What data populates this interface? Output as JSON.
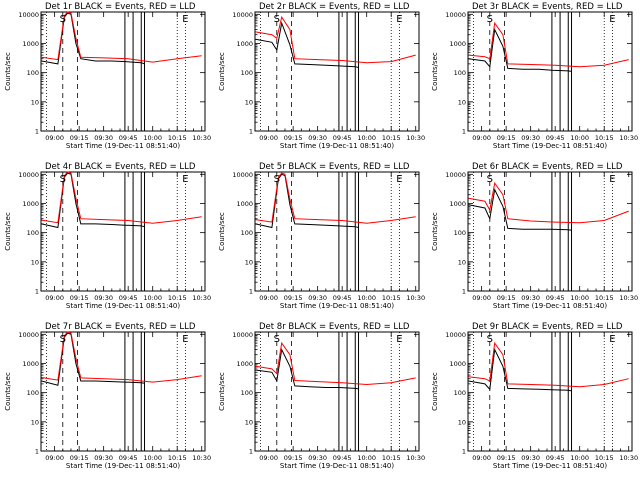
{
  "colors": {
    "events": "#000000",
    "lld": "#ff0000",
    "axes": "#000000",
    "background": "#ffffff"
  },
  "common": {
    "xlabel": "Start Time (19-Dec-11 08:51:40)",
    "ylabel": "Counts/sec",
    "x_tick_labels": [
      "09:00",
      "09:15",
      "09:30",
      "09:45",
      "10:00",
      "10:15",
      "10:30"
    ],
    "y_tick_labels": [
      "1",
      "10",
      "100",
      "1000",
      "10000"
    ]
  },
  "chart_data": [
    {
      "title": "Det 1r BLACK = Events, RED = LLD",
      "type": "line",
      "xlim": [
        "08:51:40",
        "10:32:00"
      ],
      "ylim": [
        1,
        12000
      ],
      "yscale": "log",
      "x_ticks": [
        "09:00",
        "09:15",
        "09:30",
        "09:45",
        "10:00",
        "10:15",
        "10:30"
      ],
      "dashed_lines": [
        "09:05",
        "09:14"
      ],
      "dotted_lines": [
        "08:55",
        "10:15",
        "10:20"
      ],
      "gap_lines": [
        "09:43",
        "09:48",
        "09:53",
        "09:55"
      ],
      "markers": [
        {
          "text": "S",
          "x": "09:05"
        },
        {
          "text": "E",
          "x": "10:20"
        }
      ],
      "series": [
        {
          "role": "events",
          "color": "#000000",
          "x": [
            "08:52",
            "09:02",
            "09:06",
            "09:08",
            "09:10",
            "09:13",
            "09:16",
            "09:25",
            "09:35",
            "09:43",
            "09:53",
            "09:55"
          ],
          "y": [
            250,
            200,
            8000,
            11000,
            10000,
            1000,
            300,
            250,
            250,
            240,
            220,
            200
          ]
        },
        {
          "role": "lld",
          "color": "#ff0000",
          "x": [
            "08:52",
            "09:02",
            "09:06",
            "09:08",
            "09:10",
            "09:13",
            "09:16",
            "09:30",
            "09:45",
            "10:00",
            "10:15",
            "10:30"
          ],
          "y": [
            340,
            280,
            9000,
            12000,
            11000,
            1500,
            340,
            320,
            300,
            230,
            300,
            380
          ]
        }
      ]
    },
    {
      "title": "Det 2r BLACK = Events, RED = LLD",
      "type": "line",
      "xlim": [
        "08:51:40",
        "10:32:00"
      ],
      "ylim": [
        1,
        12000
      ],
      "yscale": "log",
      "x_ticks": [
        "09:00",
        "09:15",
        "09:30",
        "09:45",
        "10:00",
        "10:15",
        "10:30"
      ],
      "dashed_lines": [
        "09:05",
        "09:14"
      ],
      "dotted_lines": [
        "08:55",
        "10:15",
        "10:20"
      ],
      "gap_lines": [
        "09:43",
        "09:48",
        "09:53",
        "09:55"
      ],
      "markers": [
        {
          "text": "S",
          "x": "09:05"
        },
        {
          "text": "E",
          "x": "10:20"
        }
      ],
      "series": [
        {
          "role": "events",
          "color": "#000000",
          "x": [
            "08:52",
            "09:02",
            "09:05",
            "09:08",
            "09:13",
            "09:16",
            "09:25",
            "09:35",
            "09:43",
            "09:53",
            "09:55"
          ],
          "y": [
            1400,
            1100,
            600,
            5000,
            900,
            200,
            190,
            180,
            170,
            160,
            150
          ]
        },
        {
          "role": "lld",
          "color": "#ff0000",
          "x": [
            "08:52",
            "09:02",
            "09:05",
            "09:08",
            "09:13",
            "09:16",
            "09:30",
            "09:45",
            "10:00",
            "10:15",
            "10:30"
          ],
          "y": [
            2500,
            2000,
            1500,
            8000,
            3000,
            300,
            280,
            260,
            220,
            240,
            400
          ]
        }
      ]
    },
    {
      "title": "Det 3r BLACK = Events, RED = LLD",
      "type": "line",
      "xlim": [
        "08:51:40",
        "10:32:00"
      ],
      "ylim": [
        1,
        12000
      ],
      "yscale": "log",
      "x_ticks": [
        "09:00",
        "09:15",
        "09:30",
        "09:45",
        "10:00",
        "10:15",
        "10:30"
      ],
      "dashed_lines": [
        "09:05",
        "09:14"
      ],
      "dotted_lines": [
        "08:55",
        "10:15",
        "10:20"
      ],
      "gap_lines": [
        "09:43",
        "09:48",
        "09:53",
        "09:55"
      ],
      "markers": [
        {
          "text": "S",
          "x": "09:05"
        },
        {
          "text": "E",
          "x": "10:20"
        }
      ],
      "series": [
        {
          "role": "events",
          "color": "#000000",
          "x": [
            "08:52",
            "09:02",
            "09:05",
            "09:08",
            "09:13",
            "09:16",
            "09:25",
            "09:35",
            "09:43",
            "09:53",
            "09:55"
          ],
          "y": [
            300,
            250,
            160,
            3000,
            800,
            140,
            130,
            130,
            120,
            115,
            110
          ]
        },
        {
          "role": "lld",
          "color": "#ff0000",
          "x": [
            "08:52",
            "09:02",
            "09:05",
            "09:08",
            "09:13",
            "09:16",
            "09:30",
            "09:45",
            "10:00",
            "10:15",
            "10:30"
          ],
          "y": [
            400,
            350,
            300,
            5000,
            2000,
            200,
            190,
            180,
            160,
            180,
            280
          ]
        }
      ]
    },
    {
      "title": "Det 4r BLACK = Events, RED = LLD",
      "type": "line",
      "xlim": [
        "08:51:40",
        "10:32:00"
      ],
      "ylim": [
        1,
        12000
      ],
      "yscale": "log",
      "x_ticks": [
        "09:00",
        "09:15",
        "09:30",
        "09:45",
        "10:00",
        "10:15",
        "10:30"
      ],
      "dashed_lines": [
        "09:05",
        "09:14"
      ],
      "dotted_lines": [
        "08:55",
        "10:15",
        "10:20"
      ],
      "gap_lines": [
        "09:43",
        "09:48",
        "09:53",
        "09:55"
      ],
      "markers": [
        {
          "text": "S",
          "x": "09:05"
        },
        {
          "text": "E",
          "x": "10:20"
        }
      ],
      "series": [
        {
          "role": "events",
          "color": "#000000",
          "x": [
            "08:52",
            "09:02",
            "09:06",
            "09:08",
            "09:10",
            "09:13",
            "09:16",
            "09:25",
            "09:35",
            "09:43",
            "09:53",
            "09:55"
          ],
          "y": [
            200,
            150,
            8000,
            11000,
            10000,
            1000,
            200,
            200,
            190,
            180,
            170,
            160
          ]
        },
        {
          "role": "lld",
          "color": "#ff0000",
          "x": [
            "08:52",
            "09:02",
            "09:06",
            "09:08",
            "09:10",
            "09:13",
            "09:16",
            "09:30",
            "09:45",
            "10:00",
            "10:15",
            "10:30"
          ],
          "y": [
            270,
            220,
            9000,
            12000,
            11000,
            1500,
            300,
            280,
            260,
            210,
            260,
            350
          ]
        }
      ]
    },
    {
      "title": "Det 5r BLACK = Events, RED = LLD",
      "type": "line",
      "xlim": [
        "08:51:40",
        "10:32:00"
      ],
      "ylim": [
        1,
        12000
      ],
      "yscale": "log",
      "x_ticks": [
        "09:00",
        "09:15",
        "09:30",
        "09:45",
        "10:00",
        "10:15",
        "10:30"
      ],
      "dashed_lines": [
        "09:05",
        "09:14"
      ],
      "dotted_lines": [
        "08:55",
        "10:15",
        "10:20"
      ],
      "gap_lines": [
        "09:43",
        "09:48",
        "09:53",
        "09:55"
      ],
      "markers": [
        {
          "text": "S",
          "x": "09:05"
        },
        {
          "text": "E",
          "x": "10:20"
        }
      ],
      "series": [
        {
          "role": "events",
          "color": "#000000",
          "x": [
            "08:52",
            "09:02",
            "09:06",
            "09:08",
            "09:10",
            "09:13",
            "09:16",
            "09:25",
            "09:35",
            "09:43",
            "09:53",
            "09:55"
          ],
          "y": [
            200,
            150,
            7000,
            10000,
            9000,
            900,
            200,
            190,
            180,
            170,
            160,
            150
          ]
        },
        {
          "role": "lld",
          "color": "#ff0000",
          "x": [
            "08:52",
            "09:02",
            "09:06",
            "09:08",
            "09:10",
            "09:13",
            "09:16",
            "09:30",
            "09:45",
            "10:00",
            "10:15",
            "10:30"
          ],
          "y": [
            280,
            230,
            8000,
            11000,
            10000,
            1400,
            300,
            280,
            260,
            210,
            260,
            350
          ]
        }
      ]
    },
    {
      "title": "Det 6r BLACK = Events, RED = LLD",
      "type": "line",
      "xlim": [
        "08:51:40",
        "10:32:00"
      ],
      "ylim": [
        1,
        12000
      ],
      "yscale": "log",
      "x_ticks": [
        "09:00",
        "09:15",
        "09:30",
        "09:45",
        "10:00",
        "10:15",
        "10:30"
      ],
      "dashed_lines": [
        "09:05",
        "09:14"
      ],
      "dotted_lines": [
        "08:55",
        "10:15",
        "10:20"
      ],
      "gap_lines": [
        "09:43",
        "09:48",
        "09:53",
        "09:55"
      ],
      "markers": [
        {
          "text": "S",
          "x": "09:05"
        },
        {
          "text": "E",
          "x": "10:20"
        }
      ],
      "series": [
        {
          "role": "events",
          "color": "#000000",
          "x": [
            "08:52",
            "09:02",
            "09:05",
            "09:08",
            "09:13",
            "09:16",
            "09:25",
            "09:35",
            "09:43",
            "09:53",
            "09:55"
          ],
          "y": [
            900,
            700,
            300,
            3000,
            800,
            140,
            130,
            130,
            130,
            125,
            120
          ]
        },
        {
          "role": "lld",
          "color": "#ff0000",
          "x": [
            "08:52",
            "09:02",
            "09:05",
            "09:08",
            "09:13",
            "09:16",
            "09:30",
            "09:45",
            "10:00",
            "10:15",
            "10:30"
          ],
          "y": [
            1500,
            1200,
            600,
            5000,
            2000,
            300,
            250,
            230,
            220,
            260,
            550
          ]
        }
      ]
    },
    {
      "title": "Det 7r BLACK = Events, RED = LLD",
      "type": "line",
      "xlim": [
        "08:51:40",
        "10:32:00"
      ],
      "ylim": [
        1,
        12000
      ],
      "yscale": "log",
      "x_ticks": [
        "09:00",
        "09:15",
        "09:30",
        "09:45",
        "10:00",
        "10:15",
        "10:30"
      ],
      "dashed_lines": [
        "09:05",
        "09:14"
      ],
      "dotted_lines": [
        "08:55",
        "10:15",
        "10:20"
      ],
      "gap_lines": [
        "09:43",
        "09:48",
        "09:53",
        "09:55"
      ],
      "markers": [
        {
          "text": "S",
          "x": "09:05"
        },
        {
          "text": "E",
          "x": "10:20"
        }
      ],
      "series": [
        {
          "role": "events",
          "color": "#000000",
          "x": [
            "08:52",
            "09:02",
            "09:06",
            "09:08",
            "09:10",
            "09:13",
            "09:16",
            "09:25",
            "09:35",
            "09:43",
            "09:53",
            "09:55"
          ],
          "y": [
            250,
            180,
            8000,
            11000,
            10000,
            1000,
            250,
            250,
            240,
            230,
            220,
            210
          ]
        },
        {
          "role": "lld",
          "color": "#ff0000",
          "x": [
            "08:52",
            "09:02",
            "09:06",
            "09:08",
            "09:10",
            "09:13",
            "09:16",
            "09:30",
            "09:45",
            "10:00",
            "10:15",
            "10:30"
          ],
          "y": [
            330,
            270,
            9000,
            12000,
            11000,
            1500,
            320,
            300,
            280,
            230,
            280,
            380
          ]
        }
      ]
    },
    {
      "title": "Det 8r BLACK = Events, RED = LLD",
      "type": "line",
      "xlim": [
        "08:51:40",
        "10:32:00"
      ],
      "ylim": [
        1,
        12000
      ],
      "yscale": "log",
      "x_ticks": [
        "09:00",
        "09:15",
        "09:30",
        "09:45",
        "10:00",
        "10:15",
        "10:30"
      ],
      "dashed_lines": [
        "09:05",
        "09:14"
      ],
      "dotted_lines": [
        "08:55",
        "10:15",
        "10:20"
      ],
      "gap_lines": [
        "09:43",
        "09:48",
        "09:53",
        "09:55"
      ],
      "markers": [
        {
          "text": "S",
          "x": "09:05"
        },
        {
          "text": "E",
          "x": "10:20"
        }
      ],
      "series": [
        {
          "role": "events",
          "color": "#000000",
          "x": [
            "08:52",
            "09:02",
            "09:05",
            "09:08",
            "09:13",
            "09:16",
            "09:25",
            "09:35",
            "09:43",
            "09:53",
            "09:55"
          ],
          "y": [
            600,
            500,
            250,
            3000,
            800,
            170,
            160,
            150,
            150,
            140,
            135
          ]
        },
        {
          "role": "lld",
          "color": "#ff0000",
          "x": [
            "08:52",
            "09:02",
            "09:05",
            "09:08",
            "09:13",
            "09:16",
            "09:30",
            "09:45",
            "10:00",
            "10:15",
            "10:30"
          ],
          "y": [
            800,
            650,
            450,
            5000,
            2000,
            260,
            240,
            220,
            190,
            220,
            320
          ]
        }
      ]
    },
    {
      "title": "Det 9r BLACK = Events, RED = LLD",
      "type": "line",
      "xlim": [
        "08:51:40",
        "10:32:00"
      ],
      "ylim": [
        1,
        12000
      ],
      "yscale": "log",
      "x_ticks": [
        "09:00",
        "09:15",
        "09:30",
        "09:45",
        "10:00",
        "10:15",
        "10:30"
      ],
      "dashed_lines": [
        "09:05",
        "09:14"
      ],
      "dotted_lines": [
        "08:55",
        "10:15",
        "10:20"
      ],
      "gap_lines": [
        "09:43",
        "09:48",
        "09:53",
        "09:55"
      ],
      "markers": [
        {
          "text": "S",
          "x": "09:05"
        },
        {
          "text": "E",
          "x": "10:20"
        }
      ],
      "series": [
        {
          "role": "events",
          "color": "#000000",
          "x": [
            "08:52",
            "09:02",
            "09:05",
            "09:08",
            "09:13",
            "09:16",
            "09:25",
            "09:35",
            "09:43",
            "09:53",
            "09:55"
          ],
          "y": [
            250,
            200,
            130,
            3000,
            800,
            140,
            135,
            130,
            125,
            120,
            115
          ]
        },
        {
          "role": "lld",
          "color": "#ff0000",
          "x": [
            "08:52",
            "09:02",
            "09:05",
            "09:08",
            "09:13",
            "09:16",
            "09:30",
            "09:45",
            "10:00",
            "10:15",
            "10:30"
          ],
          "y": [
            350,
            300,
            250,
            5000,
            2000,
            200,
            190,
            180,
            160,
            190,
            300
          ]
        }
      ]
    }
  ]
}
